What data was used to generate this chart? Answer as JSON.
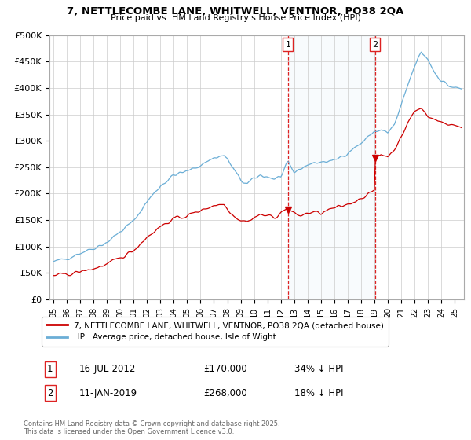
{
  "title_line1": "7, NETTLECOMBE LANE, WHITWELL, VENTNOR, PO38 2QA",
  "title_line2": "Price paid vs. HM Land Registry's House Price Index (HPI)",
  "ylim": [
    0,
    500000
  ],
  "yticks": [
    0,
    50000,
    100000,
    150000,
    200000,
    250000,
    300000,
    350000,
    400000,
    450000,
    500000
  ],
  "ytick_labels": [
    "£0",
    "£50K",
    "£100K",
    "£150K",
    "£200K",
    "£250K",
    "£300K",
    "£350K",
    "£400K",
    "£450K",
    "£500K"
  ],
  "hpi_color": "#6baed6",
  "price_color": "#cc0000",
  "vline_color": "#dd2222",
  "purchase1_date": 2012.54,
  "purchase1_price": 170000,
  "purchase2_date": 2019.04,
  "purchase2_price": 268000,
  "legend_label1": "7, NETTLECOMBE LANE, WHITWELL, VENTNOR, PO38 2QA (detached house)",
  "legend_label2": "HPI: Average price, detached house, Isle of Wight",
  "annotation1_label": "16-JUL-2012",
  "annotation1_price": "£170,000",
  "annotation1_pct": "34% ↓ HPI",
  "annotation2_label": "11-JAN-2019",
  "annotation2_price": "£268,000",
  "annotation2_pct": "18% ↓ HPI",
  "footnote": "Contains HM Land Registry data © Crown copyright and database right 2025.\nThis data is licensed under the Open Government Licence v3.0.",
  "bg_color": "#FFFFFF",
  "grid_color": "#CCCCCC",
  "shade_color": "#dce9f5"
}
